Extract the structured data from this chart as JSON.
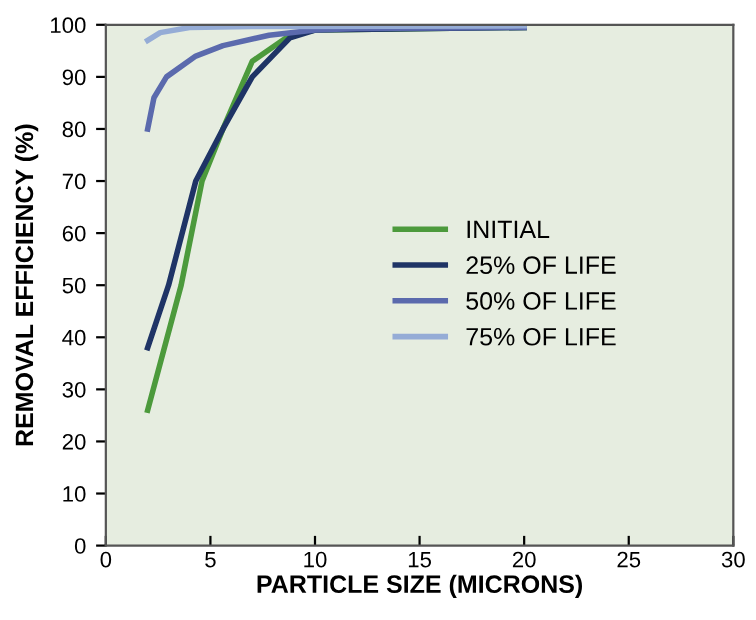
{
  "chart_data": {
    "type": "line",
    "xlabel": "PARTICLE SIZE (MICRONS)",
    "ylabel": "REMOVAL EFFICIENCY (%)",
    "xlim": [
      0,
      30
    ],
    "xticks": [
      0,
      5,
      10,
      15,
      20,
      25,
      30
    ],
    "ylim": [
      0,
      100
    ],
    "yticks": [
      0,
      10,
      20,
      30,
      40,
      50,
      60,
      70,
      80,
      90,
      100
    ],
    "grid": false,
    "legend": "right",
    "marker": "none",
    "line_style": "solid",
    "series": [
      {
        "name": "INITIAL",
        "color": "#4c9a3c",
        "x": [
          2,
          3.6,
          4.6,
          5.6,
          7,
          8.8,
          10,
          20
        ],
        "values": [
          26,
          50,
          70,
          80,
          93,
          98,
          99,
          99.5
        ]
      },
      {
        "name": "25% OF LIFE",
        "color": "#1f3466",
        "x": [
          2,
          3,
          4.3,
          5.6,
          7,
          8.8,
          10,
          20
        ],
        "values": [
          38,
          50,
          70,
          80,
          90,
          97.5,
          99,
          99.5
        ]
      },
      {
        "name": "50% OF LIFE",
        "color": "#5b6aad",
        "x": [
          2,
          2.3,
          2.9,
          4.3,
          5.6,
          7.8,
          10,
          12,
          20
        ],
        "values": [
          80,
          86,
          90,
          94,
          96,
          98,
          99,
          99.3,
          99.5
        ]
      },
      {
        "name": "75% OF LIFE",
        "color": "#95acd6",
        "x": [
          2,
          2.6,
          4,
          7,
          20
        ],
        "values": [
          97,
          98.5,
          99.5,
          99.7,
          99.8
        ]
      }
    ]
  }
}
